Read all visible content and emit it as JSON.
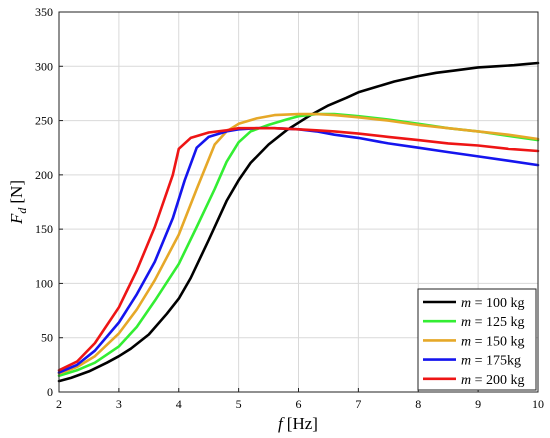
{
  "chart_data": {
    "type": "line",
    "xlabel": {
      "var": "f",
      "unit": "[Hz]"
    },
    "ylabel": {
      "var": "F",
      "sub": "d",
      "unit": "[N]"
    },
    "xlim": [
      2,
      10
    ],
    "ylim": [
      0,
      350
    ],
    "xticks": [
      2,
      3,
      4,
      5,
      6,
      7,
      8,
      9,
      10
    ],
    "yticks": [
      0,
      50,
      100,
      150,
      200,
      250,
      300,
      350
    ],
    "grid": true,
    "legend_position": "bottom-right",
    "series": [
      {
        "name": "m = 100 kg",
        "var": "m",
        "label_rest": " = 100 kg",
        "color": "#000000",
        "x": [
          2,
          2.2,
          2.5,
          2.8,
          3,
          3.2,
          3.5,
          3.8,
          4,
          4.2,
          4.5,
          4.8,
          5,
          5.2,
          5.5,
          5.8,
          6,
          6.2,
          6.5,
          6.8,
          7,
          7.3,
          7.6,
          8,
          8.3,
          8.6,
          9,
          9.3,
          9.6,
          9.8,
          10
        ],
        "y": [
          10,
          13,
          19,
          27,
          33,
          40,
          53,
          72,
          86,
          105,
          140,
          176,
          195,
          211,
          228,
          241,
          248,
          255,
          264,
          271,
          276,
          281,
          286,
          291,
          294,
          296,
          299,
          300,
          301,
          302,
          303
        ]
      },
      {
        "name": "m = 125 kg",
        "var": "m",
        "label_rest": " = 125 kg",
        "color": "#33ee33",
        "x": [
          2,
          2.3,
          2.6,
          3,
          3.3,
          3.6,
          4,
          4.3,
          4.6,
          4.8,
          5,
          5.2,
          5.5,
          5.8,
          6,
          6.3,
          6.6,
          7,
          7.5,
          8,
          8.5,
          9,
          9.5,
          10
        ],
        "y": [
          15,
          20,
          27,
          42,
          60,
          84,
          118,
          152,
          187,
          212,
          230,
          240,
          246,
          251,
          254,
          256,
          256,
          254,
          251,
          247,
          243,
          240,
          236,
          232
        ]
      },
      {
        "name": "m = 150 kg",
        "var": "m",
        "label_rest": " = 150 kg",
        "color": "#e6a828",
        "x": [
          2,
          2.3,
          2.6,
          3,
          3.3,
          3.6,
          4,
          4.3,
          4.6,
          4.8,
          5,
          5.3,
          5.6,
          6,
          6.3,
          6.6,
          7,
          7.5,
          8,
          8.5,
          9,
          9.5,
          10
        ],
        "y": [
          17,
          23,
          33,
          54,
          76,
          103,
          145,
          187,
          228,
          240,
          247,
          252,
          255,
          256,
          256,
          255,
          253,
          250,
          246,
          243,
          240,
          237,
          233
        ]
      },
      {
        "name": "m = 175kg",
        "var": "m",
        "label_rest": " = 175kg",
        "color": "#1515ee",
        "x": [
          2,
          2.3,
          2.6,
          3,
          3.3,
          3.6,
          3.9,
          4.1,
          4.3,
          4.5,
          4.8,
          5,
          5.3,
          5.6,
          6,
          6.3,
          6.6,
          7,
          7.5,
          8,
          8.5,
          9,
          9.5,
          10
        ],
        "y": [
          18,
          25,
          38,
          64,
          90,
          120,
          160,
          195,
          225,
          235,
          240,
          242,
          243,
          243,
          242,
          240,
          237,
          234,
          229,
          225,
          221,
          217,
          213,
          209
        ]
      },
      {
        "name": "m = 200 kg",
        "var": "m",
        "label_rest": " = 200 kg",
        "color": "#ee1515",
        "x": [
          2,
          2.3,
          2.6,
          3,
          3.3,
          3.6,
          3.9,
          4,
          4.2,
          4.5,
          4.8,
          5,
          5.3,
          5.6,
          6,
          6.3,
          6.6,
          7,
          7.5,
          8,
          8.5,
          9,
          9.5,
          10
        ],
        "y": [
          20,
          28,
          45,
          78,
          112,
          152,
          200,
          224,
          234,
          239,
          241,
          243,
          243,
          243,
          242,
          241,
          240,
          238,
          235,
          232,
          229,
          227,
          224,
          222
        ]
      }
    ]
  }
}
